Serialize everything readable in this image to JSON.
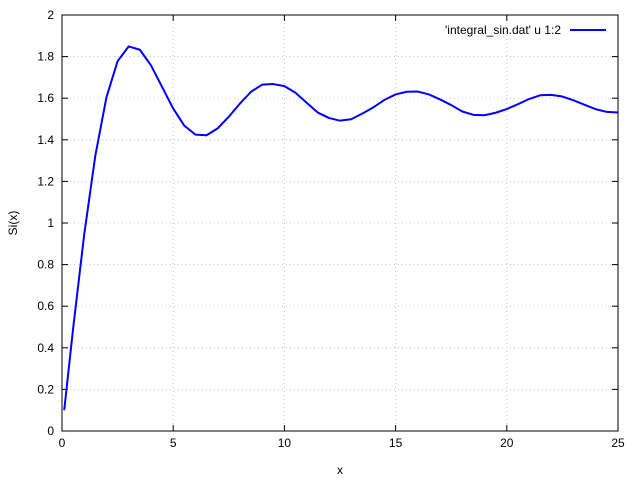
{
  "chart_data": {
    "type": "line",
    "xlabel": "x",
    "ylabel": "Si(x)",
    "xlim": [
      0,
      25
    ],
    "ylim": [
      0,
      2
    ],
    "xticks": [
      "0",
      "5",
      "10",
      "15",
      "20",
      "25"
    ],
    "yticks": [
      "0",
      "0.2",
      "0.4",
      "0.6",
      "0.8",
      "1",
      "1.2",
      "1.4",
      "1.6",
      "1.8",
      "2"
    ],
    "grid": true,
    "legend_position": "top-right",
    "series": [
      {
        "name": "'integral_sin.dat' u 1:2",
        "color": "#0000ff",
        "x": [
          0.1,
          0.5,
          1,
          1.5,
          2,
          2.5,
          3,
          3.5,
          4,
          4.5,
          5,
          5.5,
          6,
          6.5,
          7,
          7.5,
          8,
          8.5,
          9,
          9.5,
          10,
          10.5,
          11,
          11.5,
          12,
          12.5,
          13,
          13.5,
          14,
          14.5,
          15,
          15.5,
          16,
          16.5,
          17,
          17.5,
          18,
          18.5,
          19,
          19.5,
          20,
          20.5,
          21,
          21.5,
          22,
          22.5,
          23,
          23.5,
          24,
          24.5,
          25
        ],
        "y": [
          0.1,
          0.493,
          0.946,
          1.325,
          1.605,
          1.778,
          1.849,
          1.833,
          1.758,
          1.654,
          1.55,
          1.468,
          1.425,
          1.422,
          1.455,
          1.511,
          1.574,
          1.631,
          1.665,
          1.668,
          1.658,
          1.626,
          1.578,
          1.531,
          1.505,
          1.492,
          1.499,
          1.526,
          1.556,
          1.592,
          1.618,
          1.631,
          1.632,
          1.618,
          1.594,
          1.567,
          1.536,
          1.52,
          1.518,
          1.53,
          1.548,
          1.571,
          1.596,
          1.614,
          1.616,
          1.608,
          1.59,
          1.568,
          1.547,
          1.534,
          1.531
        ]
      }
    ]
  }
}
